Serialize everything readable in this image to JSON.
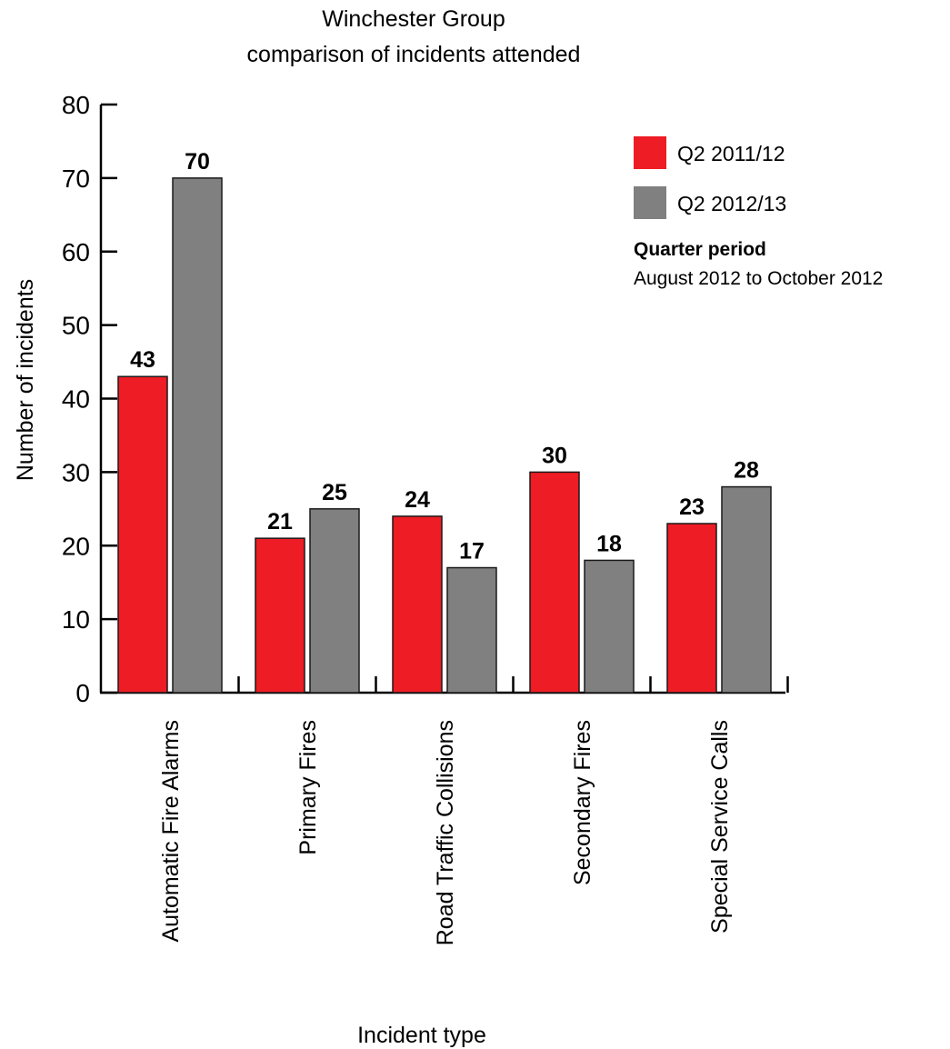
{
  "chart_data": {
    "type": "bar",
    "title": [
      "Winchester Group",
      "comparison of incidents attended"
    ],
    "xlabel": "Incident type",
    "ylabel": "Number of incidents",
    "ylim": [
      0,
      80
    ],
    "yticks": [
      "0",
      "10",
      "20",
      "30",
      "40",
      "50",
      "60",
      "70",
      "80"
    ],
    "categories": [
      "Automatic Fire Alarms",
      "Primary Fires",
      "Road Traffic Collisions",
      "Secondary Fires",
      "Special Service Calls"
    ],
    "series": [
      {
        "name": "Q2 2011/12",
        "color": "#ee1c24",
        "values": [
          43,
          21,
          24,
          30,
          23
        ]
      },
      {
        "name": "Q2 2012/13",
        "color": "#808080",
        "values": [
          70,
          25,
          17,
          18,
          28
        ]
      }
    ],
    "grid": false,
    "legend_position": "top-right",
    "note": {
      "heading": "Quarter period",
      "text": "August 2012 to October 2012"
    }
  }
}
